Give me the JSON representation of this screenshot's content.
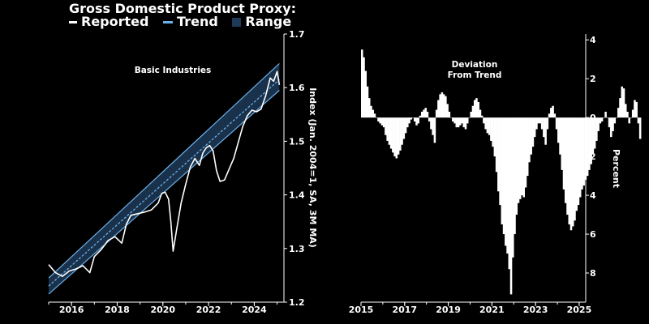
{
  "title": "Gross Domestic Product Proxy:",
  "legend": [
    {
      "label": "Reported",
      "color": "#ffffff"
    },
    {
      "label": "Trend",
      "color": "#6ab0ea"
    },
    {
      "label": "Range",
      "color": "#1f3a58"
    }
  ],
  "chart_data": [
    {
      "type": "line",
      "annotation": "Basic Industries",
      "ylabel": "Index (Jan. 2004=1, SA, 3M MA)",
      "xlim": [
        2015.0,
        2025.3
      ],
      "ylim": [
        1.2,
        1.7
      ],
      "xticks": [
        2016,
        2018,
        2020,
        2022,
        2024
      ],
      "yticks": [
        1.2,
        1.3,
        1.4,
        1.5,
        1.6,
        1.7
      ],
      "ytick_labels": [
        "1.2",
        "1.3",
        "1.4",
        "1.5",
        "1.6",
        "1.7"
      ],
      "series": [
        {
          "name": "Reported",
          "x": [
            2015.0,
            2015.3,
            2015.6,
            2015.9,
            2016.2,
            2016.5,
            2016.8,
            2017.0,
            2017.3,
            2017.6,
            2017.9,
            2018.2,
            2018.4,
            2018.6,
            2018.9,
            2019.2,
            2019.5,
            2019.8,
            2019.95,
            2020.1,
            2020.25,
            2020.35,
            2020.45,
            2020.6,
            2020.8,
            2021.0,
            2021.2,
            2021.4,
            2021.6,
            2021.75,
            2021.9,
            2022.05,
            2022.2,
            2022.35,
            2022.5,
            2022.7,
            2022.9,
            2023.1,
            2023.3,
            2023.5,
            2023.7,
            2023.9,
            2024.1,
            2024.3,
            2024.5,
            2024.7,
            2024.85,
            2025.0,
            2025.1
          ],
          "y": [
            1.27,
            1.255,
            1.248,
            1.258,
            1.262,
            1.268,
            1.255,
            1.285,
            1.298,
            1.315,
            1.322,
            1.31,
            1.345,
            1.362,
            1.365,
            1.368,
            1.372,
            1.385,
            1.403,
            1.405,
            1.392,
            1.35,
            1.295,
            1.335,
            1.385,
            1.42,
            1.452,
            1.468,
            1.455,
            1.478,
            1.488,
            1.492,
            1.482,
            1.445,
            1.425,
            1.428,
            1.448,
            1.468,
            1.498,
            1.528,
            1.548,
            1.558,
            1.555,
            1.56,
            1.585,
            1.618,
            1.612,
            1.63,
            1.605
          ]
        },
        {
          "name": "Trend",
          "x": [
            2015.0,
            2025.1
          ],
          "y": [
            1.23,
            1.615
          ]
        }
      ],
      "range": {
        "x": [
          2015.0,
          2025.1
        ],
        "lower": [
          1.215,
          1.595
        ],
        "upper": [
          1.245,
          1.645
        ]
      }
    },
    {
      "type": "bar",
      "annotation": "Deviation\nFrom Trend",
      "ylabel": "Percent",
      "xlim": [
        2015.0,
        2025.3
      ],
      "ylim": [
        -9.5,
        4.3
      ],
      "xticks": [
        2015,
        2017,
        2019,
        2021,
        2023,
        2025
      ],
      "yticks": [
        -8,
        -6,
        -4,
        -2,
        0,
        2,
        4
      ],
      "ytick_labels": [
        "8",
        "6",
        "4",
        "2",
        "0",
        "2",
        "4"
      ],
      "x_start": 2015.0,
      "step_months": 1,
      "values": [
        3.5,
        3.1,
        2.4,
        1.6,
        1.0,
        0.6,
        0.4,
        0.2,
        0.0,
        -0.2,
        -0.3,
        -0.4,
        -0.5,
        -0.9,
        -1.2,
        -1.4,
        -1.6,
        -1.8,
        -2.0,
        -2.1,
        -1.9,
        -1.7,
        -1.4,
        -1.1,
        -0.8,
        -0.5,
        -0.3,
        -0.1,
        0.0,
        -0.2,
        -0.4,
        -0.3,
        0.1,
        0.3,
        0.4,
        0.5,
        0.3,
        -0.2,
        -0.6,
        -0.9,
        -1.3,
        0.4,
        0.9,
        1.2,
        1.3,
        1.2,
        1.1,
        0.7,
        0.3,
        0.0,
        -0.2,
        -0.3,
        -0.5,
        -0.5,
        -0.4,
        -0.3,
        -0.5,
        -0.6,
        -0.3,
        0.0,
        0.3,
        0.6,
        0.9,
        1.0,
        0.8,
        0.4,
        0.1,
        -0.3,
        -0.6,
        -0.8,
        -0.9,
        -1.2,
        -1.5,
        -2.0,
        -2.8,
        -3.8,
        -4.5,
        -5.5,
        -6.0,
        -6.6,
        -7.0,
        -7.8,
        -9.1,
        -7.2,
        -6.0,
        -5.0,
        -4.4,
        -4.2,
        -4.0,
        -4.1,
        -3.6,
        -3.0,
        -2.3,
        -1.9,
        -1.5,
        -1.0,
        -0.6,
        -0.3,
        -0.3,
        -0.6,
        -1.0,
        -1.4,
        -0.6,
        0.2,
        0.5,
        0.6,
        0.2,
        -0.6,
        -1.3,
        -1.9,
        -2.7,
        -3.7,
        -4.4,
        -5.0,
        -5.5,
        -5.8,
        -5.6,
        -5.3,
        -4.8,
        -4.5,
        -4.1,
        -3.7,
        -3.5,
        -3.2,
        -3.0,
        -2.7,
        -2.4,
        -1.9,
        -1.6,
        -1.2,
        -0.7,
        -0.3,
        -0.2,
        0.0,
        0.3,
        0.0,
        -0.5,
        -1.0,
        -0.7,
        -0.3,
        0.0,
        0.5,
        1.0,
        1.6,
        1.5,
        0.7,
        0.3,
        -0.3,
        0.0,
        0.4,
        0.9,
        0.8,
        -0.3,
        -1.1
      ]
    }
  ]
}
